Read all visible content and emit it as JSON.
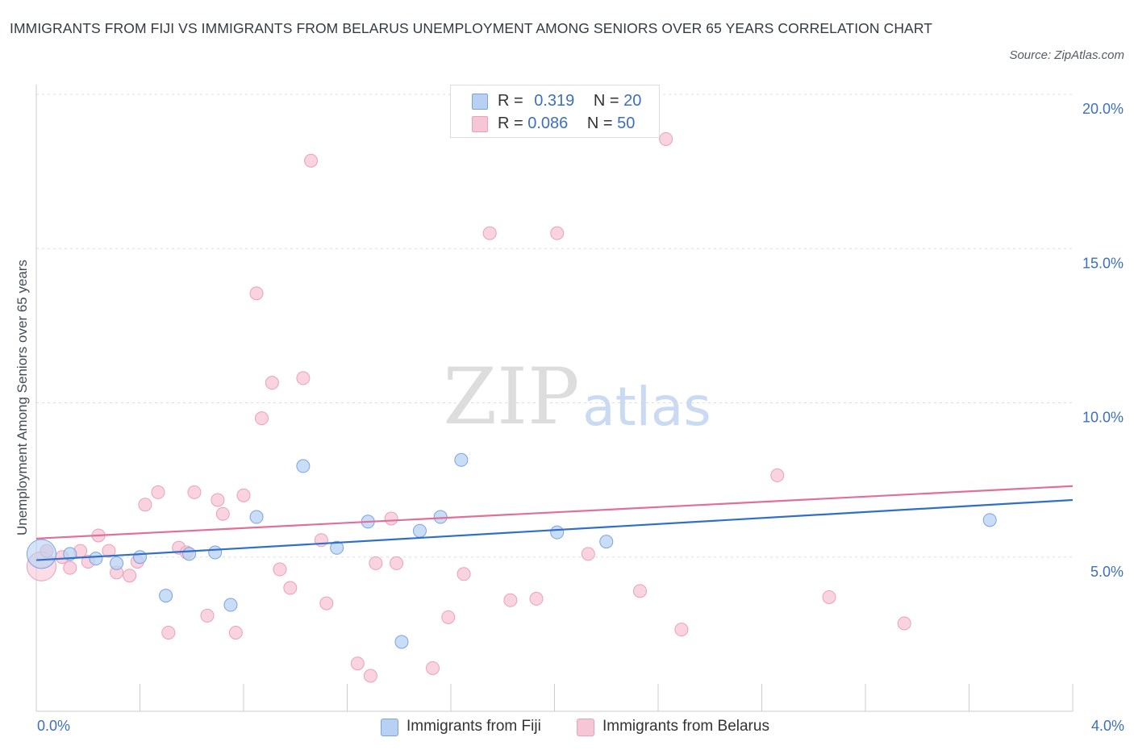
{
  "title": "IMMIGRANTS FROM FIJI VS IMMIGRANTS FROM BELARUS UNEMPLOYMENT AMONG SENIORS OVER 65 YEARS CORRELATION CHART",
  "source": "Source: ZipAtlas.com",
  "watermark": {
    "zip": "ZIP",
    "atlas": "atlas"
  },
  "legend": {
    "fiji": {
      "r_label": "R = ",
      "r_value": "0.319",
      "n_label": "N = ",
      "n_value": "20"
    },
    "belarus": {
      "r_label": "R = ",
      "r_value": "0.086",
      "n_label": "N = ",
      "n_value": "50"
    }
  },
  "colors": {
    "fiji_fill": "#b8d1f3",
    "fiji_stroke": "#7aa3e0",
    "fiji_line": "#2f6fca",
    "belarus_fill": "#f7c6d6",
    "belarus_stroke": "#eba0b9",
    "belarus_line": "#e0709a",
    "grid": "#dddddd",
    "axis_label": "#3d6fbf"
  },
  "chart_data": {
    "type": "scatter",
    "title": "IMMIGRANTS FROM FIJI VS IMMIGRANTS FROM BELARUS UNEMPLOYMENT AMONG SENIORS OVER 65 YEARS CORRELATION CHART",
    "xlabel": "",
    "ylabel": "Unemployment Among Seniors over 65 years",
    "xlim": [
      0,
      4.0
    ],
    "ylim": [
      0,
      20.0
    ],
    "x_tick_labels": [
      "0.0%",
      "4.0%"
    ],
    "y_ticks": [
      5,
      10,
      15,
      20
    ],
    "y_tick_labels": [
      "5.0%",
      "10.0%",
      "15.0%",
      "20.0%"
    ],
    "series": [
      {
        "name": "Immigrants from Fiji",
        "R": 0.319,
        "N": 20,
        "trend": {
          "x": [
            0,
            4.0
          ],
          "y": [
            4.9,
            6.85
          ]
        },
        "points": [
          {
            "x": 0.02,
            "y": 5.1,
            "big": true
          },
          {
            "x": 0.13,
            "y": 5.1
          },
          {
            "x": 0.23,
            "y": 4.95
          },
          {
            "x": 0.31,
            "y": 4.8
          },
          {
            "x": 0.4,
            "y": 5.0
          },
          {
            "x": 0.5,
            "y": 3.75
          },
          {
            "x": 0.59,
            "y": 5.1
          },
          {
            "x": 0.69,
            "y": 5.15
          },
          {
            "x": 0.75,
            "y": 3.45
          },
          {
            "x": 0.85,
            "y": 6.3
          },
          {
            "x": 1.03,
            "y": 7.95
          },
          {
            "x": 1.16,
            "y": 5.3
          },
          {
            "x": 1.28,
            "y": 6.15
          },
          {
            "x": 1.41,
            "y": 2.25
          },
          {
            "x": 1.48,
            "y": 5.85
          },
          {
            "x": 1.56,
            "y": 6.3
          },
          {
            "x": 1.64,
            "y": 8.15
          },
          {
            "x": 2.01,
            "y": 5.8
          },
          {
            "x": 2.2,
            "y": 5.5
          },
          {
            "x": 3.68,
            "y": 6.2
          }
        ]
      },
      {
        "name": "Immigrants from Belarus",
        "R": 0.086,
        "N": 50,
        "trend": {
          "x": [
            0,
            4.0
          ],
          "y": [
            5.6,
            7.3
          ]
        },
        "points": [
          {
            "x": 0.02,
            "y": 4.7,
            "big": true
          },
          {
            "x": 0.04,
            "y": 5.2
          },
          {
            "x": 0.1,
            "y": 5.0
          },
          {
            "x": 0.13,
            "y": 4.65
          },
          {
            "x": 0.17,
            "y": 5.2
          },
          {
            "x": 0.2,
            "y": 4.85
          },
          {
            "x": 0.24,
            "y": 5.7
          },
          {
            "x": 0.28,
            "y": 5.2
          },
          {
            "x": 0.31,
            "y": 4.5
          },
          {
            "x": 0.36,
            "y": 4.4
          },
          {
            "x": 0.39,
            "y": 4.85
          },
          {
            "x": 0.42,
            "y": 6.7
          },
          {
            "x": 0.47,
            "y": 7.1
          },
          {
            "x": 0.51,
            "y": 2.55
          },
          {
            "x": 0.55,
            "y": 5.3
          },
          {
            "x": 0.58,
            "y": 5.15
          },
          {
            "x": 0.61,
            "y": 7.1
          },
          {
            "x": 0.66,
            "y": 3.1
          },
          {
            "x": 0.7,
            "y": 6.85
          },
          {
            "x": 0.72,
            "y": 6.4
          },
          {
            "x": 0.77,
            "y": 2.55
          },
          {
            "x": 0.8,
            "y": 7.0
          },
          {
            "x": 0.85,
            "y": 13.55
          },
          {
            "x": 0.87,
            "y": 9.5
          },
          {
            "x": 0.91,
            "y": 10.65
          },
          {
            "x": 0.94,
            "y": 4.6
          },
          {
            "x": 0.98,
            "y": 4.0
          },
          {
            "x": 1.03,
            "y": 10.8
          },
          {
            "x": 1.06,
            "y": 17.85
          },
          {
            "x": 1.1,
            "y": 5.55
          },
          {
            "x": 1.12,
            "y": 3.5
          },
          {
            "x": 1.24,
            "y": 1.55
          },
          {
            "x": 1.29,
            "y": 1.15
          },
          {
            "x": 1.31,
            "y": 4.8
          },
          {
            "x": 1.37,
            "y": 6.25
          },
          {
            "x": 1.39,
            "y": 4.8
          },
          {
            "x": 1.53,
            "y": 1.4
          },
          {
            "x": 1.59,
            "y": 3.05
          },
          {
            "x": 1.65,
            "y": 4.45
          },
          {
            "x": 1.75,
            "y": 15.5
          },
          {
            "x": 1.83,
            "y": 3.6
          },
          {
            "x": 1.93,
            "y": 3.65
          },
          {
            "x": 2.01,
            "y": 15.5
          },
          {
            "x": 2.13,
            "y": 5.1
          },
          {
            "x": 2.33,
            "y": 3.9
          },
          {
            "x": 2.43,
            "y": 18.55
          },
          {
            "x": 2.49,
            "y": 2.65
          },
          {
            "x": 2.86,
            "y": 7.65
          },
          {
            "x": 3.06,
            "y": 3.7
          },
          {
            "x": 3.35,
            "y": 2.85
          }
        ]
      }
    ],
    "legend_entries": [
      "Immigrants from Fiji",
      "Immigrants from Belarus"
    ]
  }
}
